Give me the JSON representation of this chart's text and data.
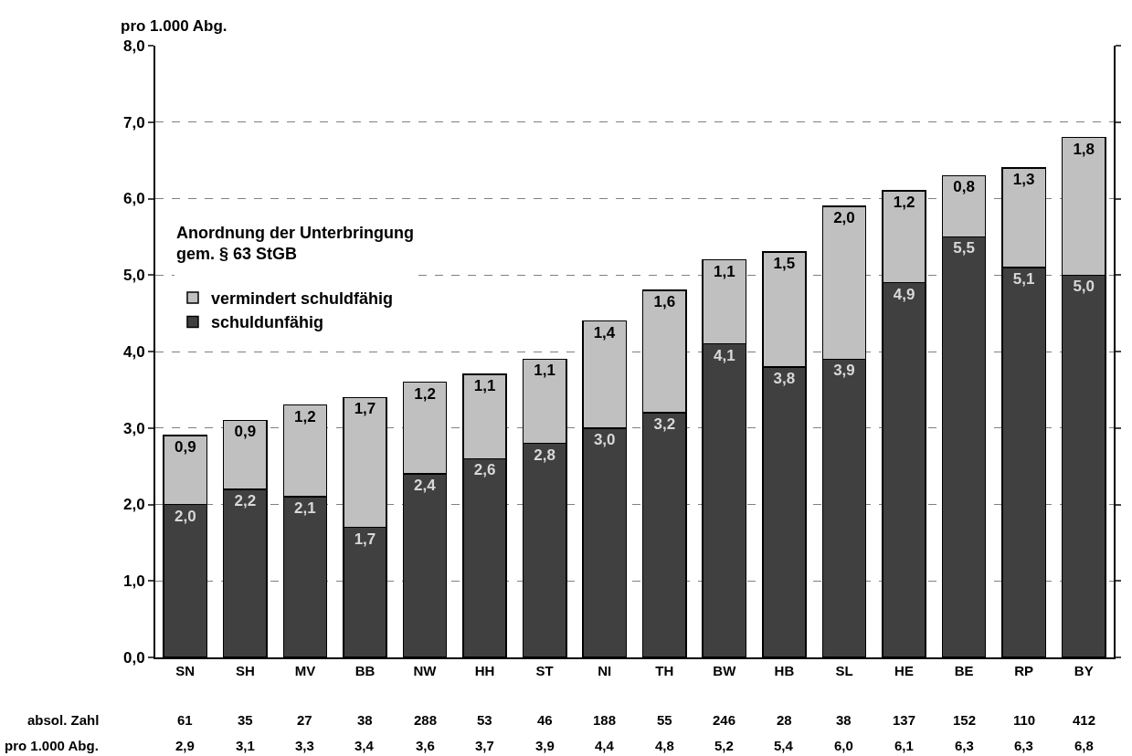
{
  "chart_data": {
    "type": "bar",
    "stacked": true,
    "ylabel": "pro 1.000 Abg.",
    "legend_title": "Anordnung der Unterbringung\ngem. § 63 StGB",
    "categories": [
      "SN",
      "SH",
      "MV",
      "BB",
      "NW",
      "HH",
      "ST",
      "NI",
      "TH",
      "BW",
      "HB",
      "SL",
      "HE",
      "BE",
      "RP",
      "BY"
    ],
    "series": [
      {
        "name": "schuldunfähig",
        "color": "#404040",
        "values": [
          2.0,
          2.2,
          2.1,
          1.7,
          2.4,
          2.6,
          2.8,
          3.0,
          3.2,
          4.1,
          3.8,
          3.9,
          4.9,
          5.5,
          5.1,
          5.0
        ],
        "value_labels": [
          "2,0",
          "2,2",
          "2,1",
          "1,7",
          "2,4",
          "2,6",
          "2,8",
          "3,0",
          "3,2",
          "4,1",
          "3,8",
          "3,9",
          "4,9",
          "5,5",
          "5,1",
          "5,0"
        ]
      },
      {
        "name": "vermindert schuldfähig",
        "color": "#c0c0c0",
        "values": [
          0.9,
          0.9,
          1.2,
          1.7,
          1.2,
          1.1,
          1.1,
          1.4,
          1.6,
          1.1,
          1.5,
          2.0,
          1.2,
          0.8,
          1.3,
          1.8
        ],
        "value_labels": [
          "0,9",
          "0,9",
          "1,2",
          "1,7",
          "1,2",
          "1,1",
          "1,1",
          "1,4",
          "1,6",
          "1,1",
          "1,5",
          "2,0",
          "1,2",
          "0,8",
          "1,3",
          "1,8"
        ]
      }
    ],
    "annotations": [
      "absol. Zahl",
      "61",
      "35",
      "27",
      "38",
      "288",
      "53",
      "46",
      "188",
      "55",
      "246",
      "28",
      "38",
      "137",
      "152",
      "110",
      "412",
      "pro 1.000 Abg.",
      "2,9",
      "3,1",
      "3,3",
      "3,4",
      "3,6",
      "3,7",
      "3,9",
      "4,4",
      "4,8",
      "5,2",
      "5,4",
      "6,0",
      "6,1",
      "6,3",
      "6,3",
      "6,8"
    ],
    "ylim": [
      0,
      8
    ],
    "yticks": [
      {
        "value": 0,
        "label": "0,0"
      },
      {
        "value": 1,
        "label": "1,0"
      },
      {
        "value": 2,
        "label": "2,0"
      },
      {
        "value": 3,
        "label": "3,0"
      },
      {
        "value": 4,
        "label": "4,0"
      },
      {
        "value": 5,
        "label": "5,0"
      },
      {
        "value": 6,
        "label": "6,0"
      },
      {
        "value": 7,
        "label": "7,0"
      },
      {
        "value": 8,
        "label": "8,0"
      }
    ],
    "grid": "y",
    "legend": "top left"
  }
}
